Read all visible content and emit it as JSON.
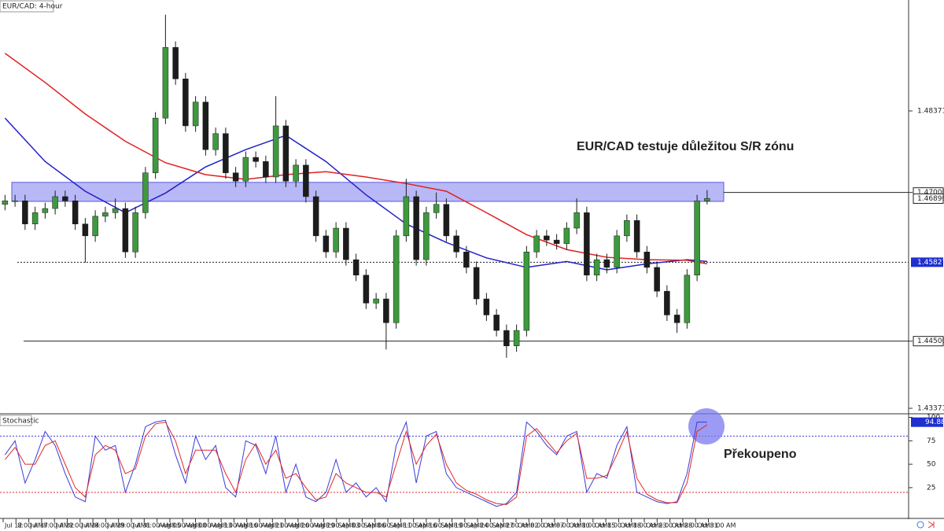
{
  "header": {
    "symbol": "EUR/CAD: 4-hour",
    "indicator": "Stochastic"
  },
  "chart_data": [
    {
      "type": "candlestick",
      "open": [
        1.468,
        1.4686,
        1.4686,
        1.4647,
        1.4666,
        1.4673,
        1.4693,
        1.4686,
        1.4647,
        1.4627,
        1.466,
        1.4666,
        1.4673,
        1.46,
        1.4666,
        1.4733,
        1.4825,
        1.4944,
        1.4891,
        1.4812,
        1.4852,
        1.4772,
        1.4799,
        1.4733,
        1.4719,
        1.4759,
        1.4752,
        1.4726,
        1.4812,
        1.4719,
        1.4746,
        1.4693,
        1.4627,
        1.46,
        1.464,
        1.4587,
        1.4561,
        1.4514,
        1.4521,
        1.4481,
        1.4627,
        1.4693,
        1.4587,
        1.4666,
        1.468,
        1.4627,
        1.46,
        1.4574,
        1.4521,
        1.4494,
        1.4468,
        1.4442,
        1.4468,
        1.46,
        1.4627,
        1.462,
        1.4614,
        1.464,
        1.4666,
        1.4561,
        1.4587,
        1.4574,
        1.4627,
        1.4653,
        1.46,
        1.4574,
        1.4534,
        1.4494,
        1.4481,
        1.4561,
        1.4686
      ],
      "high": [
        1.4696,
        1.4696,
        1.4696,
        1.4676,
        1.4683,
        1.4703,
        1.4703,
        1.4696,
        1.4657,
        1.467,
        1.4676,
        1.469,
        1.4683,
        1.4676,
        1.4743,
        1.4835,
        1.4999,
        1.4954,
        1.4901,
        1.4862,
        1.4862,
        1.4809,
        1.4809,
        1.4743,
        1.4769,
        1.4769,
        1.4762,
        1.4862,
        1.4822,
        1.4756,
        1.4756,
        1.4703,
        1.4637,
        1.465,
        1.465,
        1.4597,
        1.4571,
        1.4531,
        1.4531,
        1.4637,
        1.4723,
        1.4703,
        1.4676,
        1.47,
        1.469,
        1.4637,
        1.461,
        1.4584,
        1.4531,
        1.4504,
        1.4478,
        1.4478,
        1.461,
        1.4637,
        1.4637,
        1.463,
        1.465,
        1.469,
        1.4676,
        1.4597,
        1.4597,
        1.4637,
        1.4663,
        1.4663,
        1.461,
        1.4584,
        1.4544,
        1.4504,
        1.4571,
        1.4696,
        1.4704
      ],
      "low": [
        1.467,
        1.4676,
        1.4637,
        1.4637,
        1.4656,
        1.4663,
        1.4676,
        1.4637,
        1.4582,
        1.4617,
        1.465,
        1.4656,
        1.459,
        1.459,
        1.4656,
        1.4723,
        1.4815,
        1.4881,
        1.4802,
        1.4802,
        1.4762,
        1.4762,
        1.4723,
        1.4709,
        1.4709,
        1.4742,
        1.4716,
        1.4716,
        1.4709,
        1.4709,
        1.4683,
        1.4617,
        1.459,
        1.459,
        1.4577,
        1.4551,
        1.4504,
        1.4504,
        1.4436,
        1.4471,
        1.4617,
        1.4577,
        1.4577,
        1.4656,
        1.4617,
        1.459,
        1.4564,
        1.4511,
        1.4484,
        1.4458,
        1.4422,
        1.4432,
        1.4458,
        1.459,
        1.461,
        1.4604,
        1.4604,
        1.463,
        1.4551,
        1.4551,
        1.4564,
        1.4564,
        1.4617,
        1.459,
        1.4564,
        1.4524,
        1.4484,
        1.4464,
        1.4471,
        1.4551,
        1.468
      ],
      "close": [
        1.4686,
        1.4686,
        1.4647,
        1.4666,
        1.4673,
        1.4693,
        1.4686,
        1.4647,
        1.4627,
        1.466,
        1.4666,
        1.4673,
        1.46,
        1.4666,
        1.4733,
        1.4825,
        1.4944,
        1.4891,
        1.4812,
        1.4852,
        1.4772,
        1.4799,
        1.4733,
        1.4719,
        1.4759,
        1.4752,
        1.4726,
        1.4812,
        1.4719,
        1.4746,
        1.4693,
        1.4627,
        1.46,
        1.464,
        1.4587,
        1.4561,
        1.4514,
        1.4521,
        1.4481,
        1.4627,
        1.4693,
        1.4587,
        1.4666,
        1.468,
        1.4627,
        1.46,
        1.4574,
        1.4521,
        1.4494,
        1.4468,
        1.4442,
        1.4468,
        1.46,
        1.4627,
        1.462,
        1.4614,
        1.464,
        1.4666,
        1.4561,
        1.4587,
        1.4574,
        1.4627,
        1.4653,
        1.46,
        1.4574,
        1.4534,
        1.4494,
        1.4481,
        1.4561,
        1.4686,
        1.469
      ],
      "up_color": "#3d9a3d",
      "down_color": "#1c1c1c",
      "series": [
        {
          "color": "#2020c8",
          "x": [
            0,
            4,
            8,
            12,
            16,
            20,
            24,
            28,
            32,
            36,
            40,
            44,
            48,
            52,
            56,
            60,
            64,
            68,
            70
          ],
          "values": [
            1.4825,
            1.4752,
            1.4702,
            1.4666,
            1.4699,
            1.4743,
            1.4772,
            1.4796,
            1.4752,
            1.4696,
            1.4647,
            1.4616,
            1.459,
            1.4574,
            1.4584,
            1.457,
            1.458,
            1.4587,
            1.4584
          ]
        },
        {
          "color": "#e02020",
          "x": [
            0,
            4,
            8,
            12,
            16,
            20,
            24,
            28,
            32,
            36,
            40,
            44,
            48,
            52,
            56,
            60,
            64,
            68,
            70
          ],
          "values": [
            1.4934,
            1.4885,
            1.4832,
            1.4786,
            1.475,
            1.473,
            1.4722,
            1.473,
            1.4735,
            1.4726,
            1.4715,
            1.4702,
            1.4666,
            1.4629,
            1.4604,
            1.4591,
            1.4587,
            1.4586,
            1.458
          ]
        }
      ],
      "ylim": [
        1.43292,
        1.50236
      ],
      "yticks": [
        1.48371,
        {
          "value": 1.47,
          "label": "1.47000"
        },
        {
          "value": 1.445,
          "label": "1.44500"
        },
        1.43371
      ],
      "last_price": 1.46896,
      "level": 1.45827,
      "hlines": [
        {
          "value": 1.47,
          "style": "solid"
        },
        {
          "value": 1.45827,
          "style": "dotted"
        },
        {
          "value": 1.445,
          "style": "solid"
        }
      ],
      "zone": [
        1.4685,
        1.4717
      ],
      "zone_color": "#9a9af2",
      "annotation": "EUR/CAD testuje důležitou S/R zónu",
      "x_labels": [
        "Jul 12",
        "8:00 AM",
        "Jul 17",
        "8:00 AM",
        "Jul 22",
        "8:00 AM",
        "Jul 24",
        "8:00 AM",
        "Jul 29",
        "8:00 AM",
        "Jul 31",
        "8:00 AM",
        "Aug 05",
        "8:00 AM",
        "Aug 08",
        "8:00 AM",
        "Aug 13",
        "8:00 AM",
        "Aug 16",
        "8:00 AM",
        "Aug 21",
        "8:00 AM",
        "Aug 26",
        "8:00 AM",
        "Aug 29",
        "8:00 AM",
        "Sep 03",
        "8:00 AM",
        "Sep 06",
        "8:00 AM",
        "Sep 11",
        "8:00 AM",
        "Sep 16",
        "8:00 AM",
        "Sep 19",
        "8:00 AM",
        "Sep 24",
        "8:00 AM",
        "Sep 27",
        "8:00 AM",
        "Oct 02",
        "8:00 AM",
        "Oct 07",
        "8:00 AM",
        "Oct 10",
        "8:00 AM",
        "Oct 15",
        "8:00 AM",
        "Oct 18",
        "8:00 AM",
        "Oct 23",
        "8:00 AM",
        "Oct 28",
        "8:00 AM",
        "Oct 31",
        "8:00 AM"
      ]
    },
    {
      "type": "stochastic",
      "series": [
        {
          "color": "#3a3ad8",
          "values": [
            60,
            75,
            30,
            55,
            85,
            70,
            40,
            15,
            10,
            80,
            65,
            70,
            20,
            50,
            90,
            95,
            97,
            60,
            30,
            80,
            55,
            70,
            25,
            15,
            75,
            70,
            40,
            80,
            20,
            50,
            15,
            10,
            20,
            55,
            20,
            30,
            15,
            25,
            10,
            70,
            95,
            30,
            80,
            85,
            40,
            25,
            20,
            15,
            10,
            5,
            8,
            20,
            95,
            85,
            70,
            60,
            80,
            85,
            20,
            40,
            35,
            70,
            90,
            20,
            15,
            10,
            8,
            10,
            40,
            95,
            94.88
          ]
        },
        {
          "color": "#e02828",
          "values": [
            55,
            68,
            50,
            50,
            70,
            75,
            50,
            25,
            15,
            60,
            70,
            65,
            40,
            45,
            80,
            93,
            95,
            75,
            40,
            65,
            65,
            65,
            40,
            20,
            55,
            72,
            50,
            65,
            35,
            40,
            25,
            12,
            15,
            40,
            30,
            25,
            20,
            20,
            15,
            50,
            85,
            50,
            70,
            82,
            50,
            30,
            22,
            18,
            12,
            8,
            7,
            15,
            80,
            88,
            75,
            62,
            75,
            83,
            35,
            35,
            38,
            60,
            85,
            35,
            18,
            12,
            9,
            9,
            30,
            85,
            92
          ]
        }
      ],
      "ylim": [
        -7,
        103
      ],
      "yticks": [
        25,
        50,
        75,
        100
      ],
      "levels": [
        {
          "value": 80,
          "color": "#3a3ad8"
        },
        {
          "value": 20,
          "color": "#e02828"
        }
      ],
      "last_value": 94.88,
      "annotation": "Překoupeno"
    }
  ]
}
